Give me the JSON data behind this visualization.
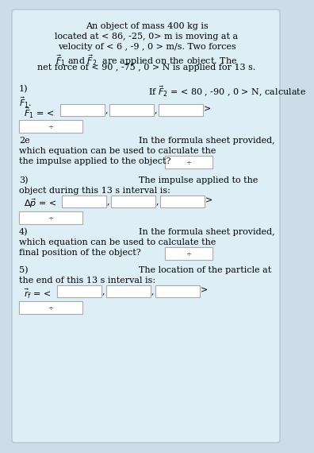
{
  "bg_color": "#ccdde8",
  "panel_color": "#ddeef7",
  "text_color": "#000000",
  "box_color": "#ffffff",
  "box_border": "#aaaaaa",
  "font_size": 8.0,
  "title_lines": [
    "An object of mass 400 kg is",
    "located at < 86, -25, 0> m is moving at a",
    "velocity of < 6 , -9 , 0 > m/s. Two forces",
    "$\\vec{F}_1$ and $\\vec{F}_2$  are applied on the object. The",
    "net force of < 90 , -75 , 0 > N is applied for 13 s."
  ],
  "q1_label": "1)",
  "q1_right": "If $\\vec{F}_2$ = < 80 , -90 , 0 > N, calculate",
  "q1_line2": "$\\vec{F}_1$.",
  "q1_eq": "$\\vec{F}_1$ = <",
  "q2_label": "2e",
  "q2_right": "In the formula sheet provided,",
  "q2_line2": "which equation can be used to calculate the",
  "q2_line3": "the impulse applied to the object?",
  "q3_label": "3)",
  "q3_right": "The impulse applied to the",
  "q3_line2": "object during this 13 s interval is:",
  "q3_eq": "$\\Delta\\vec{p}$ = <",
  "q4_label": "4)",
  "q4_right": "In the formula sheet provided,",
  "q4_line2": "which equation can be used to calculate the",
  "q4_line3": "final position of the object?",
  "q5_label": "5)",
  "q5_right": "The location of the particle at",
  "q5_line2": "the end of this 13 s interval is:",
  "q5_eq": "$\\vec{r}_f$ = <"
}
